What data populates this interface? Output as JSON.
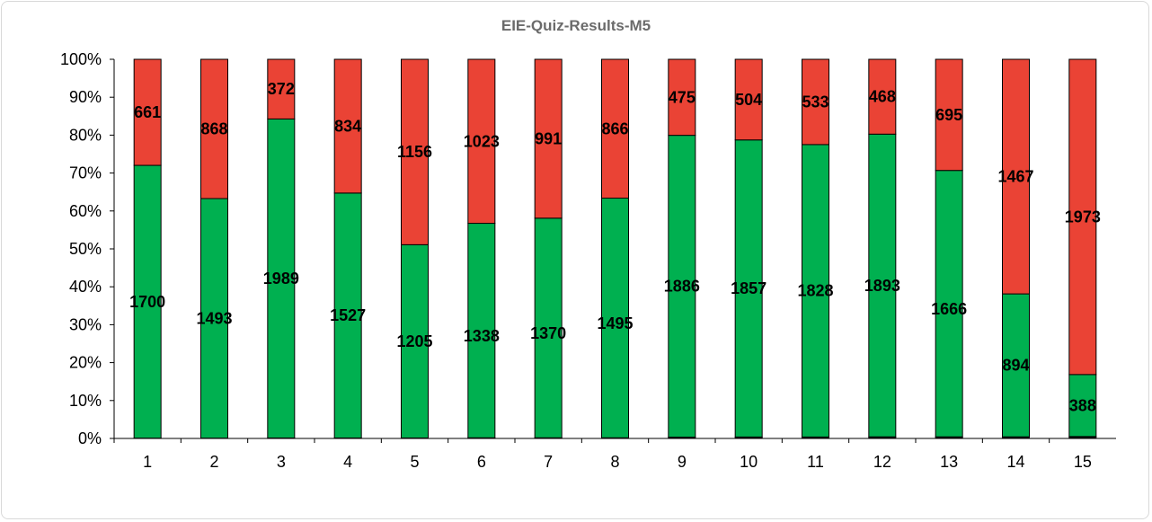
{
  "chart_data": {
    "type": "bar",
    "stacked": "percent",
    "title": "EIE-Quiz-Results-M5",
    "xlabel": "",
    "ylabel": "",
    "categories": [
      "1",
      "2",
      "3",
      "4",
      "5",
      "6",
      "7",
      "8",
      "9",
      "10",
      "11",
      "12",
      "13",
      "14",
      "15"
    ],
    "y_ticks": [
      "0%",
      "10%",
      "20%",
      "30%",
      "40%",
      "50%",
      "60%",
      "70%",
      "80%",
      "90%",
      "100%"
    ],
    "ylim": [
      0,
      100
    ],
    "grid": false,
    "legend": "none",
    "series": [
      {
        "color": "#000000",
        "values": [
          2,
          2,
          3,
          3,
          3,
          4,
          4,
          4,
          8,
          9,
          9,
          10,
          10,
          10,
          12
        ]
      },
      {
        "color": "#00b050",
        "values": [
          1700,
          1493,
          1989,
          1527,
          1205,
          1338,
          1370,
          1495,
          1886,
          1857,
          1828,
          1893,
          1666,
          894,
          388
        ]
      },
      {
        "color": "#ea4335",
        "values": [
          661,
          868,
          372,
          834,
          1156,
          1023,
          991,
          866,
          475,
          504,
          533,
          468,
          695,
          1467,
          1973
        ]
      }
    ]
  }
}
